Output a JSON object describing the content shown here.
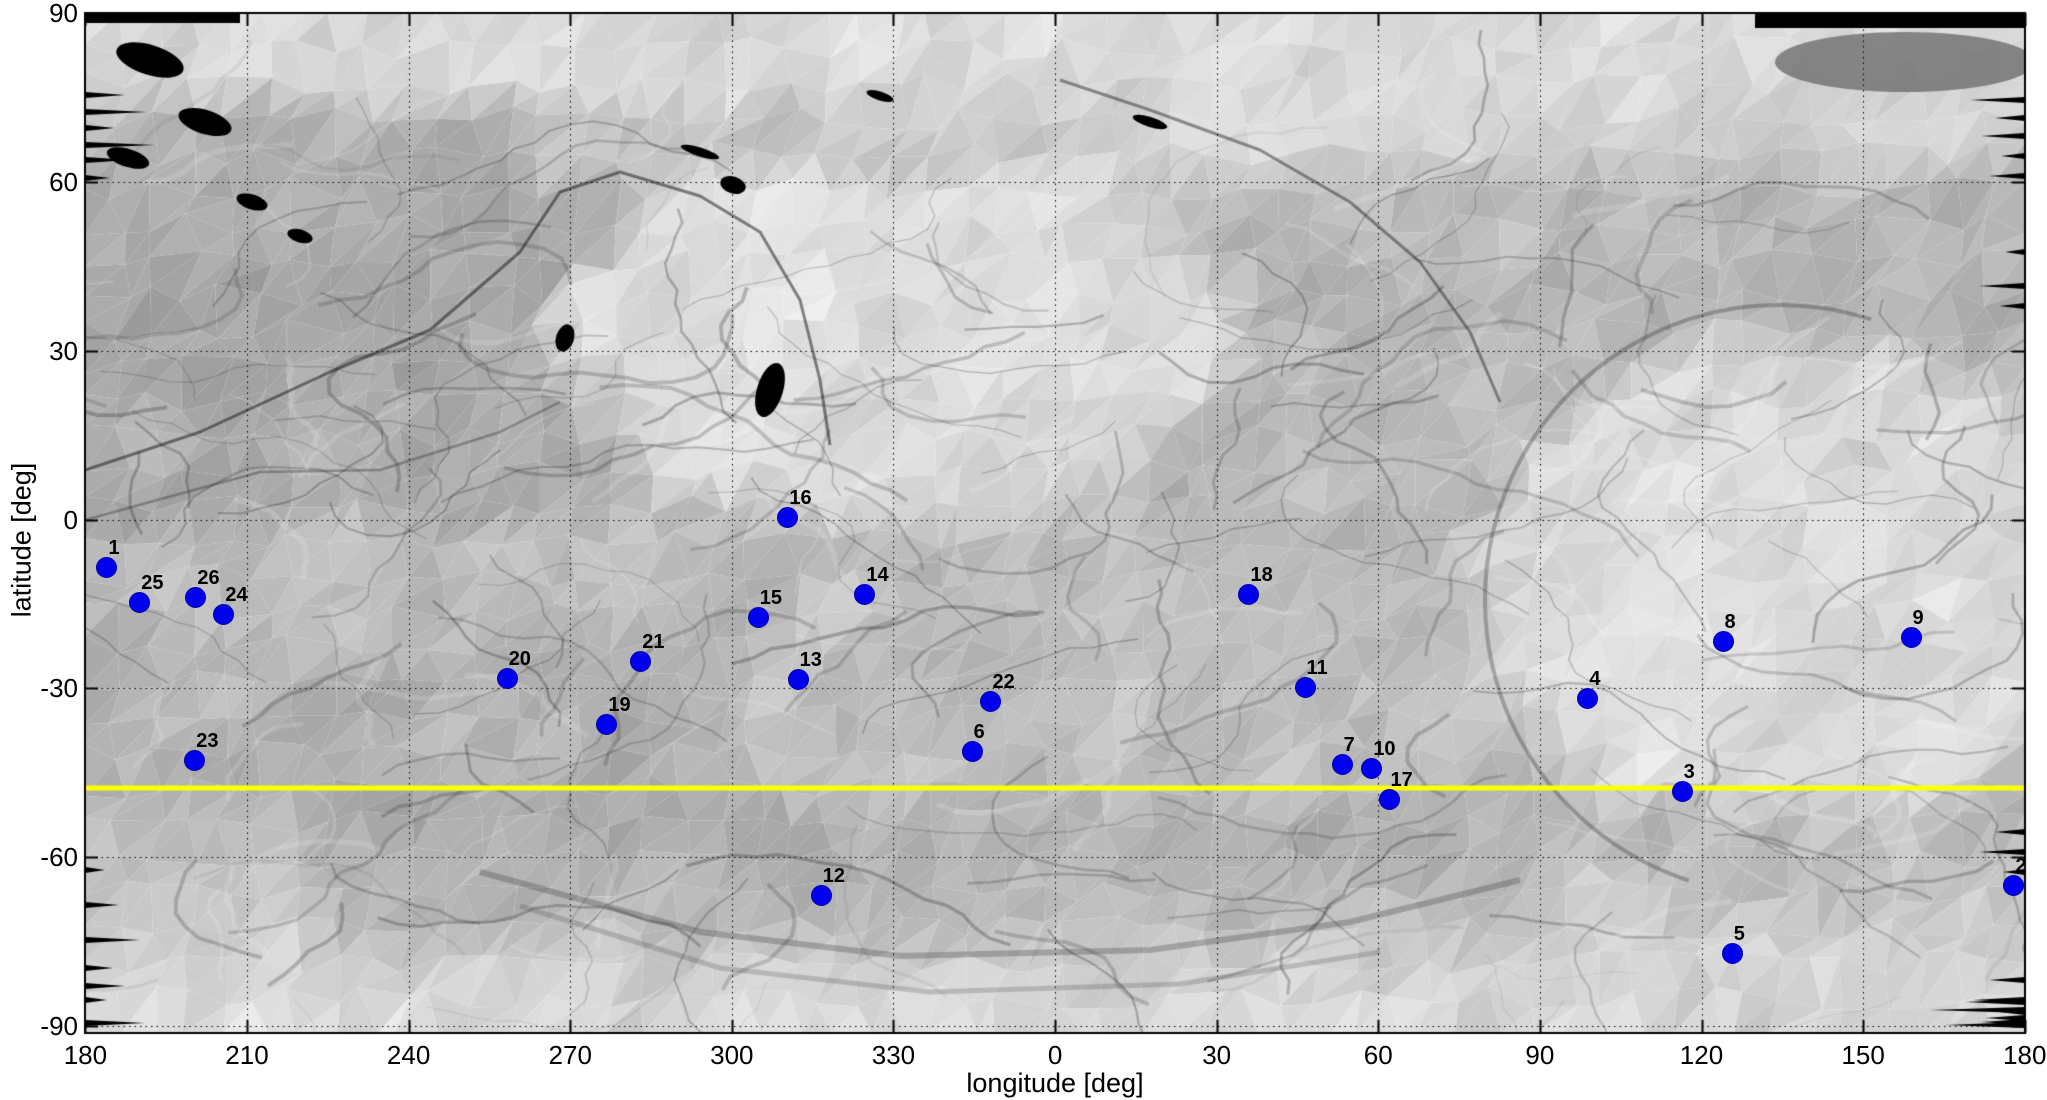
{
  "chart_data": {
    "type": "scatter",
    "title": "",
    "xlabel": "longitude [deg]",
    "ylabel": "latitude [deg]",
    "x_axis_wrap_deg": [
      180,
      540
    ],
    "ylim": [
      -90,
      90
    ],
    "grid": true,
    "x_ticks": [
      {
        "label": "180",
        "deg": 180
      },
      {
        "label": "210",
        "deg": 210
      },
      {
        "label": "240",
        "deg": 240
      },
      {
        "label": "270",
        "deg": 270
      },
      {
        "label": "300",
        "deg": 300
      },
      {
        "label": "330",
        "deg": 330
      },
      {
        "label": "0",
        "deg": 360
      },
      {
        "label": "30",
        "deg": 390
      },
      {
        "label": "60",
        "deg": 420
      },
      {
        "label": "90",
        "deg": 450
      },
      {
        "label": "120",
        "deg": 480
      },
      {
        "label": "150",
        "deg": 510
      },
      {
        "label": "180",
        "deg": 540
      }
    ],
    "y_ticks": [
      {
        "label": "90",
        "lat": 90
      },
      {
        "label": "60",
        "lat": 60
      },
      {
        "label": "30",
        "lat": 30
      },
      {
        "label": "0",
        "lat": 0
      },
      {
        "label": "-30",
        "lat": -30
      },
      {
        "label": "-60",
        "lat": -60
      },
      {
        "label": "-90",
        "lat": -90
      }
    ],
    "marker_color": "#0000ee",
    "marker_label_color": "#000000",
    "reference_line": {
      "type": "horizontal",
      "lat": -47.7,
      "color": "#ffff00"
    },
    "background_description": "grayscale shaded-relief equirectangular map of comet surface",
    "points": [
      {
        "id": "1",
        "lon": 184.0,
        "lat": -8.6
      },
      {
        "id": "2",
        "lon": 178.0,
        "lat": -65.0
      },
      {
        "id": "3",
        "lon": 116.4,
        "lat": -48.4
      },
      {
        "id": "4",
        "lon": 98.9,
        "lat": -31.9
      },
      {
        "id": "5",
        "lon": 125.7,
        "lat": -77.2
      },
      {
        "id": "6",
        "lon": 344.6,
        "lat": -41.2
      },
      {
        "id": "7",
        "lon": 53.3,
        "lat": -43.6
      },
      {
        "id": "8",
        "lon": 124.0,
        "lat": -21.6
      },
      {
        "id": "9",
        "lon": 158.9,
        "lat": -20.9
      },
      {
        "id": "10",
        "lon": 58.8,
        "lat": -44.2
      },
      {
        "id": "11",
        "lon": 46.4,
        "lat": -29.8
      },
      {
        "id": "12",
        "lon": 316.6,
        "lat": -66.9
      },
      {
        "id": "13",
        "lon": 312.3,
        "lat": -28.5
      },
      {
        "id": "14",
        "lon": 324.7,
        "lat": -13.4
      },
      {
        "id": "15",
        "lon": 304.9,
        "lat": -17.5
      },
      {
        "id": "16",
        "lon": 310.4,
        "lat": 0.4
      },
      {
        "id": "17",
        "lon": 62.0,
        "lat": -49.7
      },
      {
        "id": "18",
        "lon": 36.0,
        "lat": -13.4
      },
      {
        "id": "19",
        "lon": 276.8,
        "lat": -36.5
      },
      {
        "id": "20",
        "lon": 258.3,
        "lat": -28.2
      },
      {
        "id": "21",
        "lon": 283.1,
        "lat": -25.3
      },
      {
        "id": "22",
        "lon": 348.1,
        "lat": -32.4
      },
      {
        "id": "23",
        "lon": 200.3,
        "lat": -42.8
      },
      {
        "id": "24",
        "lon": 205.7,
        "lat": -16.8
      },
      {
        "id": "25",
        "lon": 190.1,
        "lat": -14.7
      },
      {
        "id": "26",
        "lon": 200.5,
        "lat": -13.8
      }
    ]
  }
}
